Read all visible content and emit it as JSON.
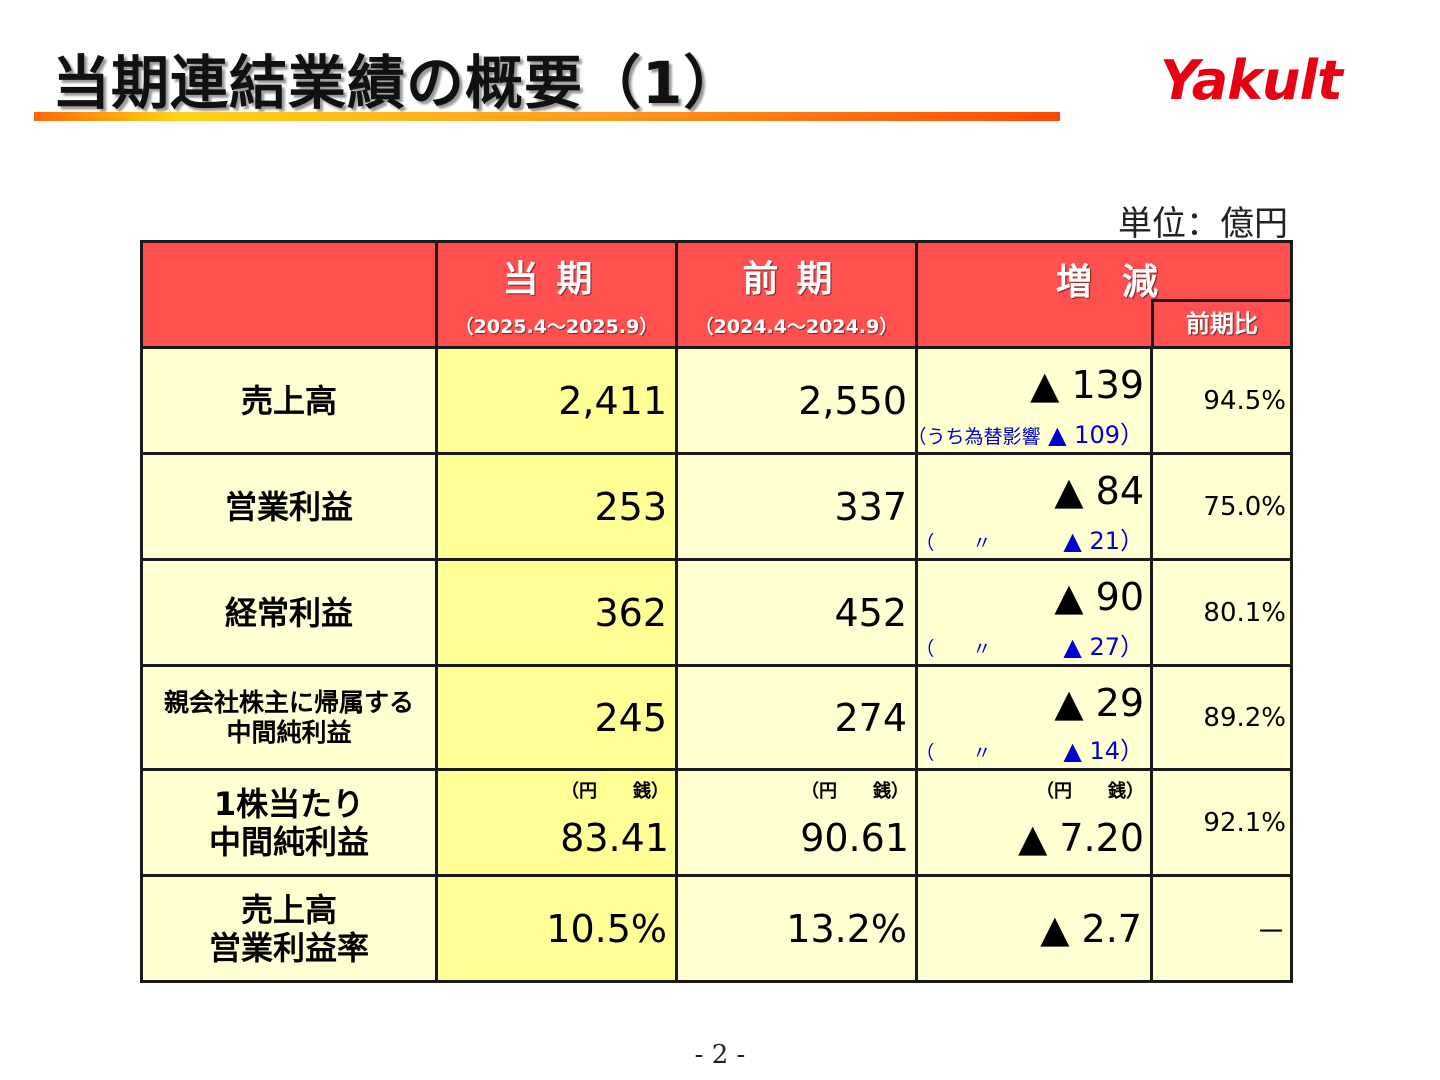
{
  "slide": {
    "title": "当期連結業績の概要（1）",
    "logo_text": "Yakult",
    "unit": "単位：億円",
    "page_number": "- 2 -",
    "colors": {
      "header_red": "#ff5050",
      "current_yellow": "#ffff96",
      "cell_cream": "#ffffd2",
      "logo_red": "#e60012",
      "fx_blue": "#0000cc"
    }
  },
  "table": {
    "headers": {
      "current": "当期",
      "current_period": "（2025.4～2025.9）",
      "previous": "前期",
      "previous_period": "（2024.4～2024.9）",
      "change": "増減",
      "ratio": "前期比"
    },
    "yen_sen_label": "（円　　銭）",
    "rows": [
      {
        "label": "売上高",
        "current": "2,411",
        "previous": "2,550",
        "change": "▲ 139",
        "fx_note": "（うち為替影響",
        "fx_value": "▲ 109）",
        "ratio": "94.5%"
      },
      {
        "label": "営業利益",
        "current": "253",
        "previous": "337",
        "change": "▲ 84",
        "fx_note": "（　　〃",
        "fx_value": "▲ 21）",
        "ratio": "75.0%"
      },
      {
        "label": "経常利益",
        "current": "362",
        "previous": "452",
        "change": "▲ 90",
        "fx_note": "（　　〃",
        "fx_value": "▲ 27）",
        "ratio": "80.1%"
      },
      {
        "label_line1": "親会社株主に帰属する",
        "label_line2": "中間純利益",
        "current": "245",
        "previous": "274",
        "change": "▲ 29",
        "fx_note": "（　　〃",
        "fx_value": "▲ 14）",
        "ratio": "89.2%"
      },
      {
        "label_line1": "1株当たり",
        "label_line2": "中間純利益",
        "current": "83.41",
        "previous": "90.61",
        "change": "▲ 7.20",
        "ratio": "92.1%"
      },
      {
        "label_line1": "売上高",
        "label_line2": "営業利益率",
        "current": "10.5%",
        "previous": "13.2%",
        "change": "▲ 2.7",
        "ratio": "－"
      }
    ]
  }
}
